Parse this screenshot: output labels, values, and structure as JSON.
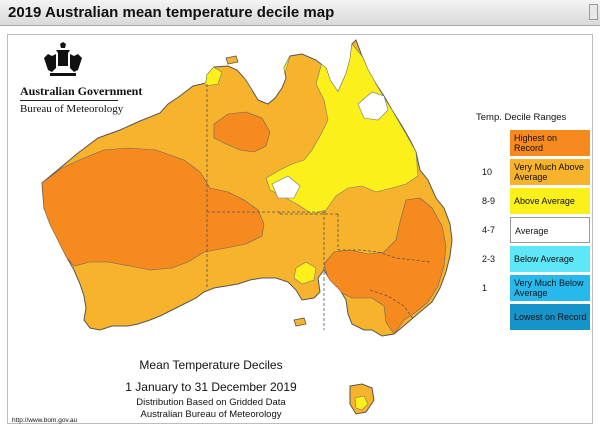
{
  "window": {
    "title": "2019 Australian mean temperature decile map"
  },
  "logo": {
    "government": "Australian Government",
    "agency": "Bureau of Meteorology",
    "emblem": "coat-of-arms-icon"
  },
  "legend": {
    "title": "Temp. Decile Ranges",
    "items": [
      {
        "label": "Highest on Record",
        "range": "",
        "color": "#f68a1f"
      },
      {
        "label": "Very Much Above Average",
        "range": "10",
        "color": "#f7b32b"
      },
      {
        "label": "Above Average",
        "range": "8-9",
        "color": "#fbf01a"
      },
      {
        "label": "Average",
        "range": "4-7",
        "color": "#ffffff"
      },
      {
        "label": "Below Average",
        "range": "2-3",
        "color": "#5ee7f7"
      },
      {
        "label": "Very Much Below Average",
        "range": "1",
        "color": "#27b9ee"
      },
      {
        "label": "Lowest on Record",
        "range": "",
        "color": "#1693c9"
      }
    ]
  },
  "caption": {
    "line1": "Mean Temperature Deciles",
    "line2": "1 January to 31 December 2019",
    "line3": "Distribution Based on Gridded Data",
    "line4": "Australian Bureau of Meteorology"
  },
  "footer": {
    "url": "http://www.bom.gov.au"
  }
}
